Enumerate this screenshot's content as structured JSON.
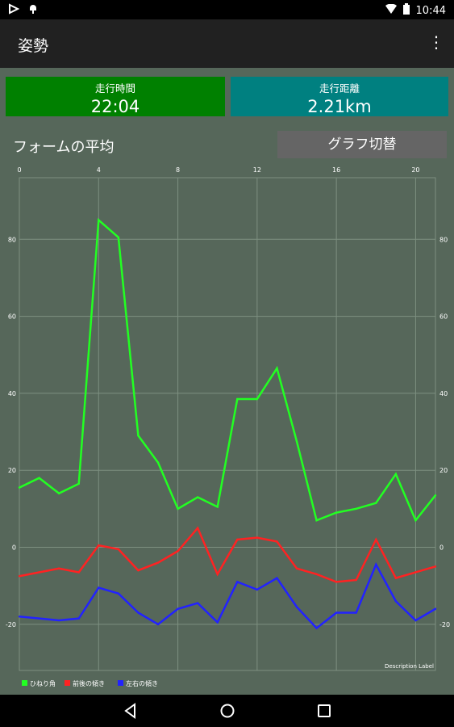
{
  "status": {
    "time": "10:44"
  },
  "app_bar": {
    "title": "姿勢",
    "overflow_glyph": "⋮"
  },
  "cards": {
    "time": {
      "label": "走行時間",
      "value": "22:04",
      "color": "#008000"
    },
    "distance": {
      "label": "走行距離",
      "value": "2.21km",
      "color": "#008080"
    }
  },
  "section": {
    "title": "フォームの平均",
    "switch_label": "グラフ切替"
  },
  "chart_data": {
    "type": "line",
    "x": [
      0,
      1,
      2,
      3,
      4,
      5,
      6,
      7,
      8,
      9,
      10,
      11,
      12,
      13,
      14,
      15,
      16,
      17,
      18,
      19,
      20,
      21
    ],
    "x_ticks": [
      0,
      4,
      8,
      12,
      16,
      20
    ],
    "y_ticks": [
      -20,
      0,
      20,
      40,
      60,
      80
    ],
    "xlim": [
      0,
      21
    ],
    "ylim": [
      -32,
      96
    ],
    "grid": true,
    "legend_position": "bottom-left",
    "description_label": "Description Label",
    "series": [
      {
        "name": "ひねり角",
        "color": "#22ff22",
        "values": [
          15.5,
          18,
          14,
          16.5,
          85,
          80.5,
          29,
          22,
          10,
          13,
          10.5,
          38.5,
          38.5,
          46.5,
          27.5,
          7,
          9,
          10,
          11.5,
          19,
          7,
          13.5
        ]
      },
      {
        "name": "前後の傾き",
        "color": "#ff2222",
        "values": [
          -7.5,
          -6.5,
          -5.5,
          -6.5,
          0.5,
          -0.5,
          -6,
          -4,
          -1,
          5,
          -7,
          2,
          2.5,
          1.5,
          -5.5,
          -7,
          -9,
          -8.5,
          2,
          -8,
          -6.5,
          -5
        ]
      },
      {
        "name": "左右の傾き",
        "color": "#2222ff",
        "values": [
          -18,
          -18.5,
          -19,
          -18.5,
          -10.5,
          -12,
          -17,
          -20,
          -16,
          -14.5,
          -19.5,
          -9,
          -11,
          -8,
          -15.5,
          -21,
          -17,
          -17,
          -4.5,
          -14,
          -19,
          -16
        ]
      }
    ]
  }
}
